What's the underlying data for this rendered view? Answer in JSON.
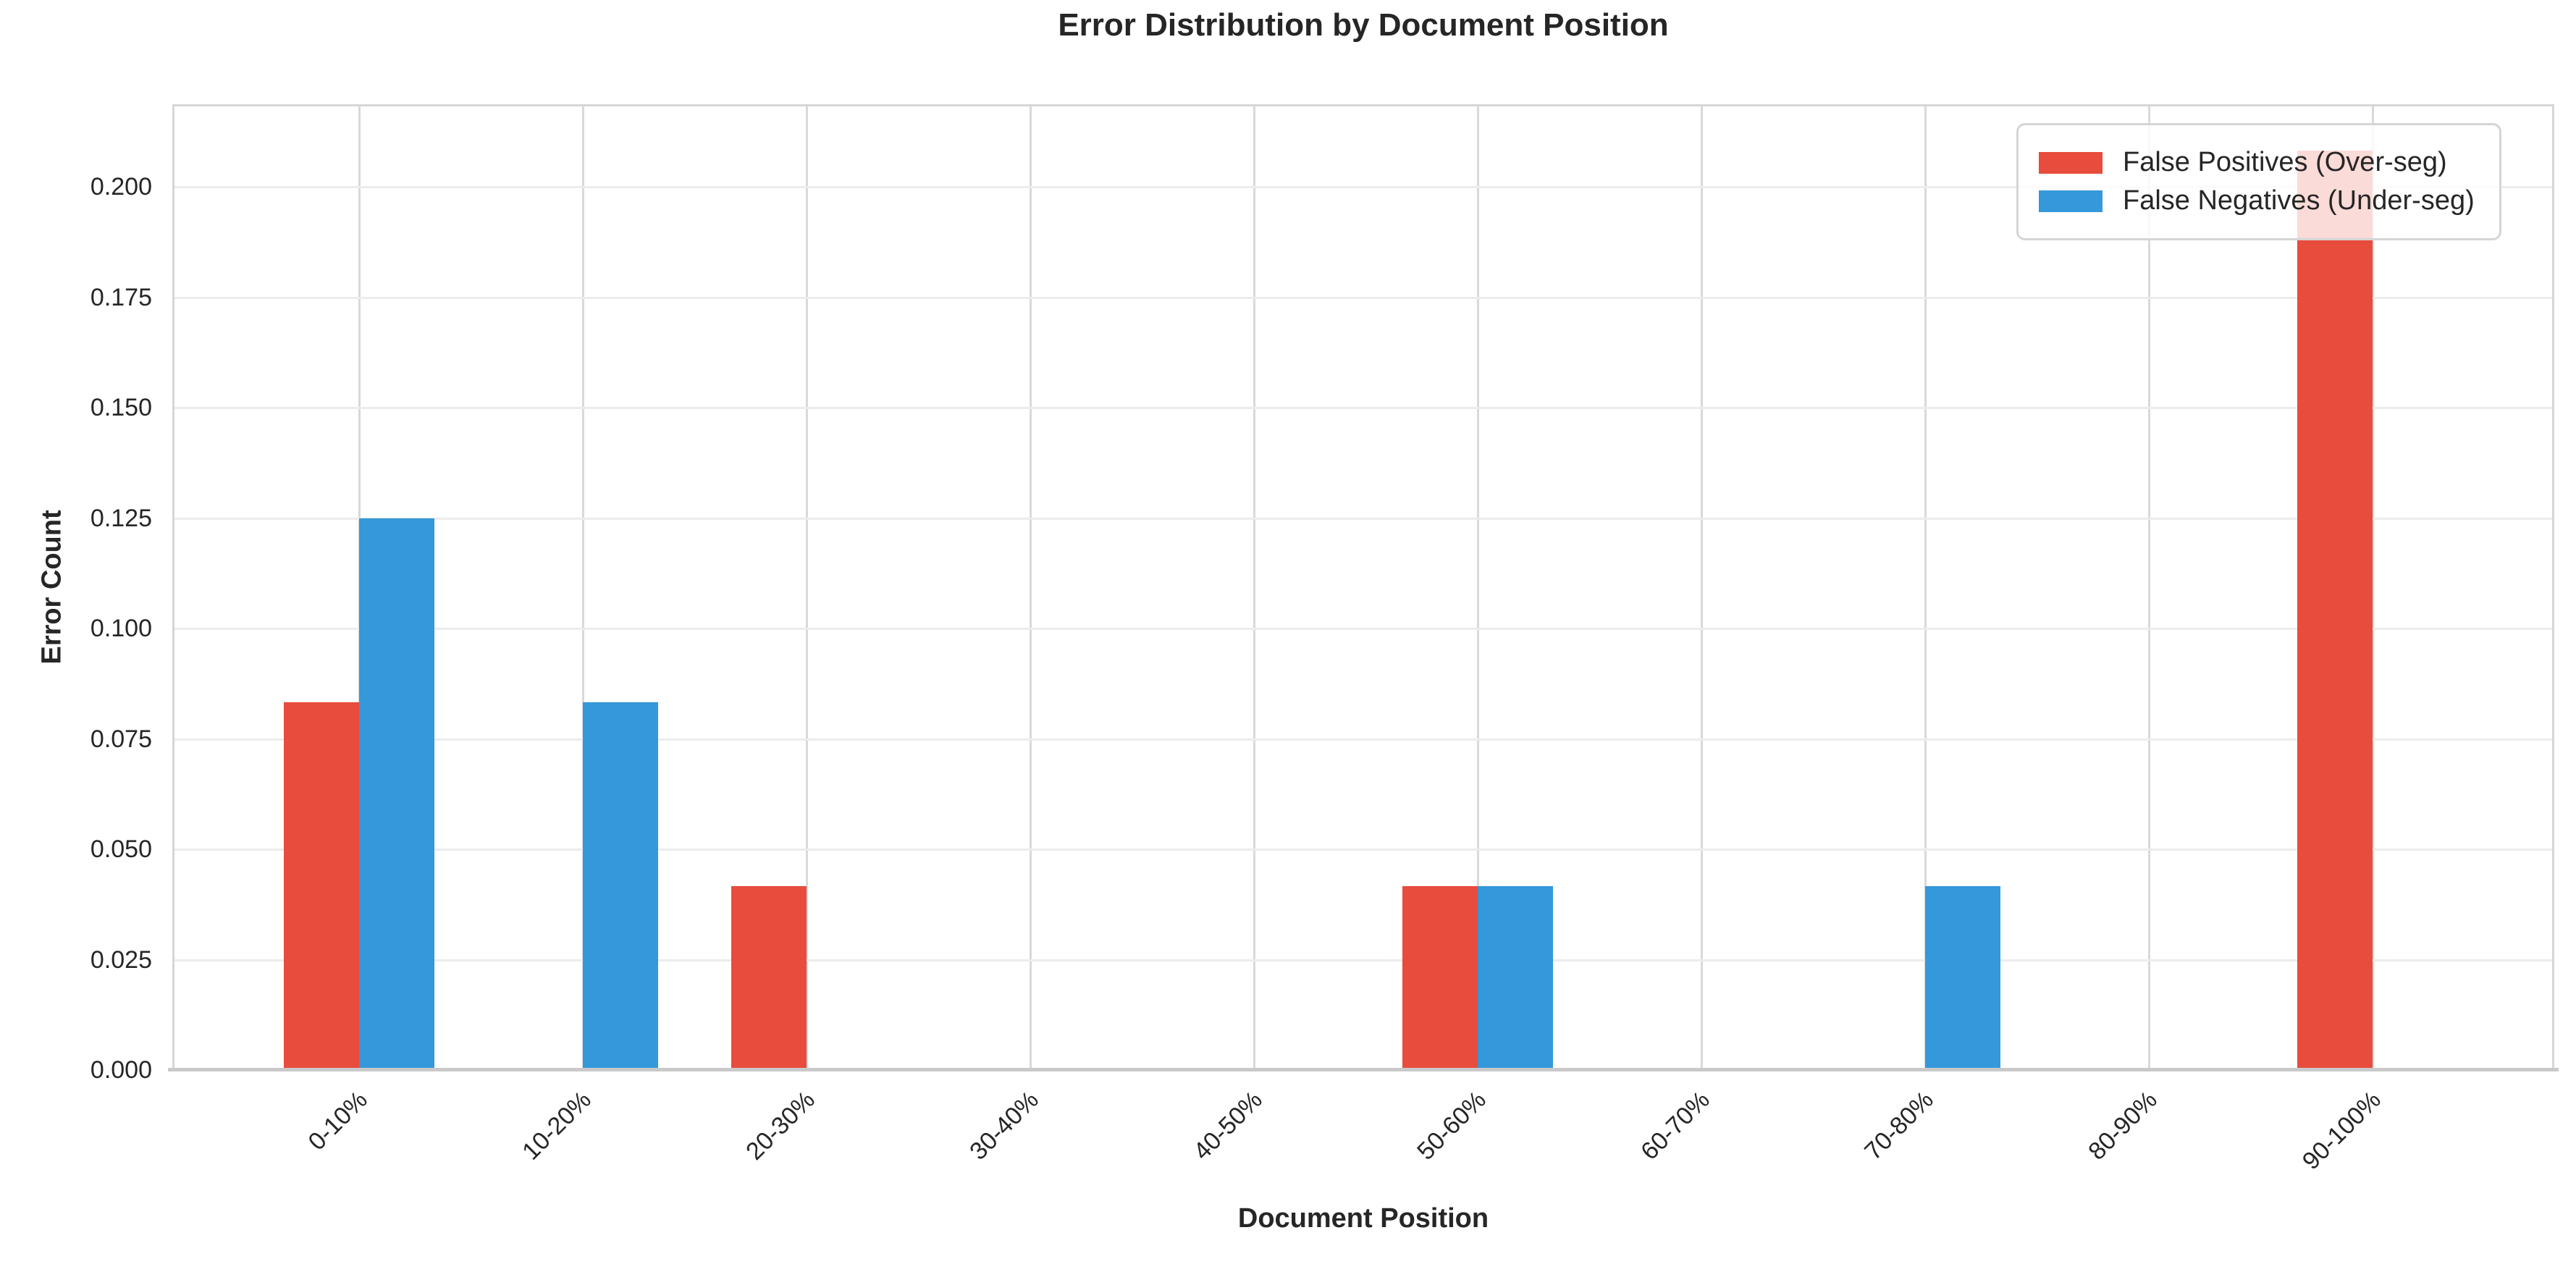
{
  "chart_data": {
    "type": "bar",
    "title": "Error Distribution by Document Position",
    "xlabel": "Document Position",
    "ylabel": "Error Count",
    "categories": [
      "0-10%",
      "10-20%",
      "20-30%",
      "30-40%",
      "40-50%",
      "50-60%",
      "60-70%",
      "70-80%",
      "80-90%",
      "90-100%"
    ],
    "series": [
      {
        "name": "False Positives (Over-seg)",
        "color": "#e74c3c",
        "values": [
          0.0833,
          0,
          0.0417,
          0,
          0,
          0.0417,
          0,
          0,
          0,
          0.2083
        ]
      },
      {
        "name": "False Negatives (Under-seg)",
        "color": "#3498db",
        "values": [
          0.125,
          0.0833,
          0,
          0,
          0,
          0.0417,
          0,
          0.0417,
          0,
          0
        ]
      }
    ],
    "ylim": [
      0,
      0.21875
    ],
    "yticks": [
      "0.000",
      "0.025",
      "0.050",
      "0.075",
      "0.100",
      "0.125",
      "0.150",
      "0.175",
      "0.200"
    ],
    "grid": "on",
    "legend_position": "upper right",
    "colors": {
      "false_positives": "#e74c3c",
      "false_negatives": "#3498db",
      "grid_horizontal": "#ececec",
      "grid_vertical": "#d9d9d9",
      "spine": "#d6d6d6",
      "text": "#262626"
    }
  }
}
